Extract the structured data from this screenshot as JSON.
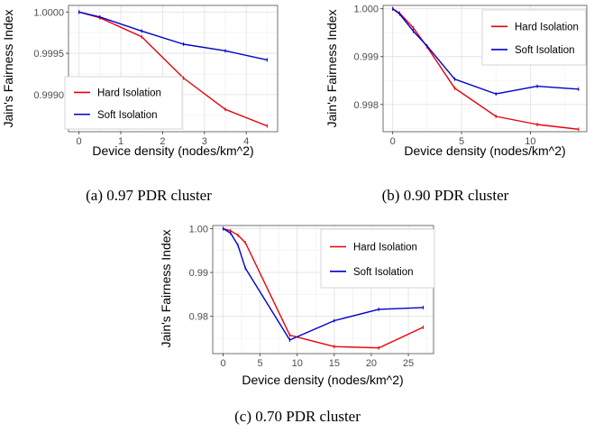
{
  "chart_data": [
    {
      "type": "line",
      "caption": "(a) 0.97 PDR cluster",
      "xlabel": "Device density (nodes/km^2)",
      "ylabel": "Jain's Fairness Index",
      "xlim": [
        -0.25,
        4.75
      ],
      "ylim": [
        0.99855,
        1.00008
      ],
      "xticks": [
        0,
        1,
        2,
        3,
        4
      ],
      "yticks": [
        0.999,
        0.9995,
        1.0
      ],
      "ytick_labels": [
        "0.9990",
        "0.9995",
        "1.0000"
      ],
      "legend_position": "bottom-left",
      "series": [
        {
          "name": "Hard Isolation",
          "color": "#e8000b",
          "x": [
            0,
            0.5,
            1.5,
            2.5,
            3.5,
            4.5
          ],
          "y": [
            1.0,
            0.99993,
            0.9997,
            0.9992,
            0.99882,
            0.99862
          ]
        },
        {
          "name": "Soft Isolation",
          "color": "#0000cc",
          "x": [
            0,
            0.5,
            1.5,
            2.5,
            3.5,
            4.5
          ],
          "y": [
            1.0,
            0.99994,
            0.99977,
            0.99961,
            0.99953,
            0.99942
          ]
        }
      ]
    },
    {
      "type": "line",
      "caption": "(b) 0.90 PDR cluster",
      "xlabel": "Device density (nodes/km^2)",
      "ylabel": "Jain's Fairness Index",
      "xlim": [
        -0.7,
        14.1
      ],
      "ylim": [
        0.99743,
        1.00007
      ],
      "xticks": [
        0,
        5,
        10
      ],
      "yticks": [
        0.998,
        0.999,
        1.0
      ],
      "ytick_labels": [
        "0.998",
        "0.999",
        "1.000"
      ],
      "legend_position": "top-right",
      "series": [
        {
          "name": "Hard Isolation",
          "color": "#e8000b",
          "x": [
            0,
            0.5,
            1.5,
            2.5,
            4.5,
            7.5,
            10.5,
            13.5
          ],
          "y": [
            1.0,
            0.99991,
            0.9996,
            0.9992,
            0.99834,
            0.99775,
            0.99758,
            0.99748
          ]
        },
        {
          "name": "Soft Isolation",
          "color": "#0000cc",
          "x": [
            0,
            0.5,
            1.5,
            2.5,
            4.5,
            7.5,
            10.5,
            13.5
          ],
          "y": [
            1.0,
            0.99989,
            0.99953,
            0.99922,
            0.99853,
            0.99822,
            0.99838,
            0.99832
          ]
        }
      ]
    },
    {
      "type": "line",
      "caption": "(c) 0.70 PDR cluster",
      "xlabel": "Device density (nodes/km^2)",
      "ylabel": "Jain's Fairness Index",
      "xlim": [
        -1.4,
        28.4
      ],
      "ylim": [
        0.9715,
        1.0007
      ],
      "xticks": [
        0,
        5,
        10,
        15,
        20,
        25
      ],
      "yticks": [
        0.98,
        0.99,
        1.0
      ],
      "ytick_labels": [
        "0.98",
        "0.99",
        "1.00"
      ],
      "legend_position": "top-right",
      "series": [
        {
          "name": "Hard Isolation",
          "color": "#e8000b",
          "x": [
            0,
            1,
            2,
            3,
            9,
            15,
            21,
            27
          ],
          "y": [
            1.0,
            0.9995,
            0.9985,
            0.9968,
            0.9757,
            0.9731,
            0.9728,
            0.9775
          ]
        },
        {
          "name": "Soft Isolation",
          "color": "#0000cc",
          "x": [
            0,
            1,
            2,
            3,
            9,
            15,
            21,
            27
          ],
          "y": [
            1.0,
            0.999,
            0.9962,
            0.991,
            0.9746,
            0.979,
            0.9816,
            0.982
          ]
        }
      ]
    }
  ]
}
